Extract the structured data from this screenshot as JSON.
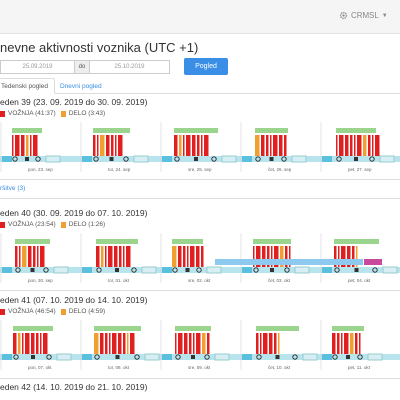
{
  "topbar": {
    "crm_label": "CRM",
    "lang": "SL"
  },
  "page_title": "nevne aktivnosti voznika (UTC +1)",
  "filter": {
    "date_from": "25.09.2019",
    "separator": "do",
    "date_to": "25.10.2019",
    "button": "Pogled"
  },
  "tabs": [
    {
      "label": "Tedenski pogled"
    },
    {
      "label": "Dnevni pogled"
    }
  ],
  "weeks": [
    {
      "title": "eden 39 (23. 09. 2019 do 30. 09. 2019)",
      "legend_drive": "VOŽNJA (41:37)",
      "legend_work": "DELO (3:43)",
      "days": [
        "pon, 23. sep",
        "tor, 24. sep",
        "sre, 25. sep",
        "čet, 26. sep",
        "pet, 27. sep"
      ]
    },
    {
      "title": "eden 40 (30. 09. 2019 do 07. 10. 2019)",
      "legend_drive": "VOŽNJA (23:54)",
      "legend_work": "DELO (1:26)",
      "days": [
        "pon, 30. sep",
        "tor, 01. okt",
        "sre, 02. okt",
        "čet, 03. okt",
        "pet, 04. okt"
      ]
    },
    {
      "title": "eden 41 (07. 10. 2019 do 14. 10. 2019)",
      "legend_drive": "VOŽNJA (46:54)",
      "legend_work": "DELO (4:59)",
      "days": [
        "pon, 07. okt",
        "tor, 08. okt",
        "sre, 09. okt",
        "čet, 10. okt",
        "pet, 11. okt"
      ]
    },
    {
      "title": "eden 42 (14. 10. 2019 do 21. 10. 2019)"
    }
  ],
  "krsitve_label": "ršitve (3)",
  "colors": {
    "drive": "#e02020",
    "work": "#f0a030",
    "rest": "#5bc0de",
    "accent": "#3a8ee6"
  }
}
